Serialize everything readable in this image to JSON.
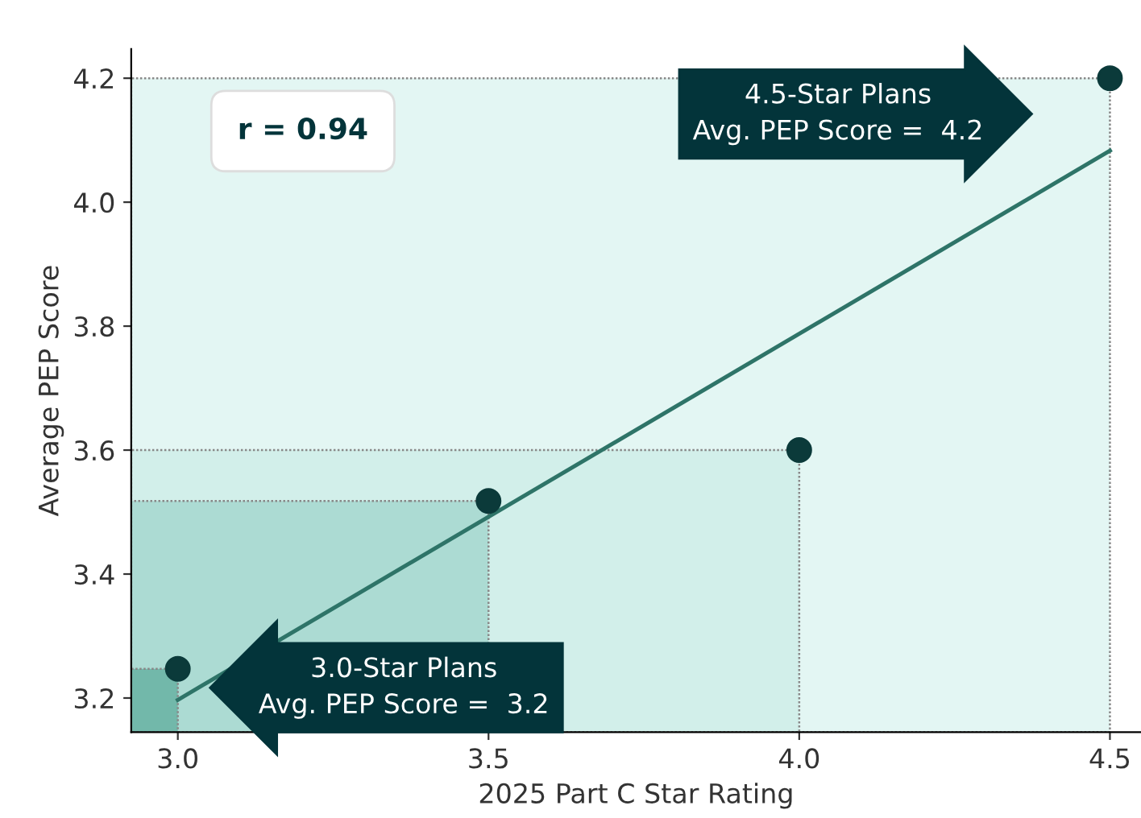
{
  "chart_data": {
    "type": "scatter",
    "xlabel": "2025 Part C Star Rating",
    "ylabel": "Average PEP Score",
    "series": [
      {
        "color": "#0b3a3a",
        "x": [
          3.0,
          3.5,
          4.0,
          4.5
        ],
        "values": [
          3.247,
          3.518,
          3.6,
          4.2
        ],
        "marker": "circle"
      },
      {
        "type": "line",
        "color": "#2e7468",
        "x": [
          3.0,
          4.5
        ],
        "values": [
          3.197,
          4.083
        ],
        "line_style": "solid",
        "marker": "none"
      }
    ],
    "xlim": [
      2.925,
      4.55
    ],
    "ylim": [
      3.145,
      4.247
    ],
    "xticks": [
      {
        "value": 3,
        "label": "3.0"
      },
      3.5,
      {
        "value": 4,
        "label": "4.0"
      },
      4.5
    ],
    "yticks": [
      3.2,
      3.4,
      3.6,
      3.8,
      {
        "value": 4,
        "label": "4.0"
      },
      4.2
    ],
    "annotations": [
      "3.0-Star Plans\nAvg. PEP Score =  3.2",
      "4.5-Star Plans\nAvg. PEP Score =  4.2",
      "r = 0.94"
    ],
    "grid": false,
    "legend": false
  }
}
